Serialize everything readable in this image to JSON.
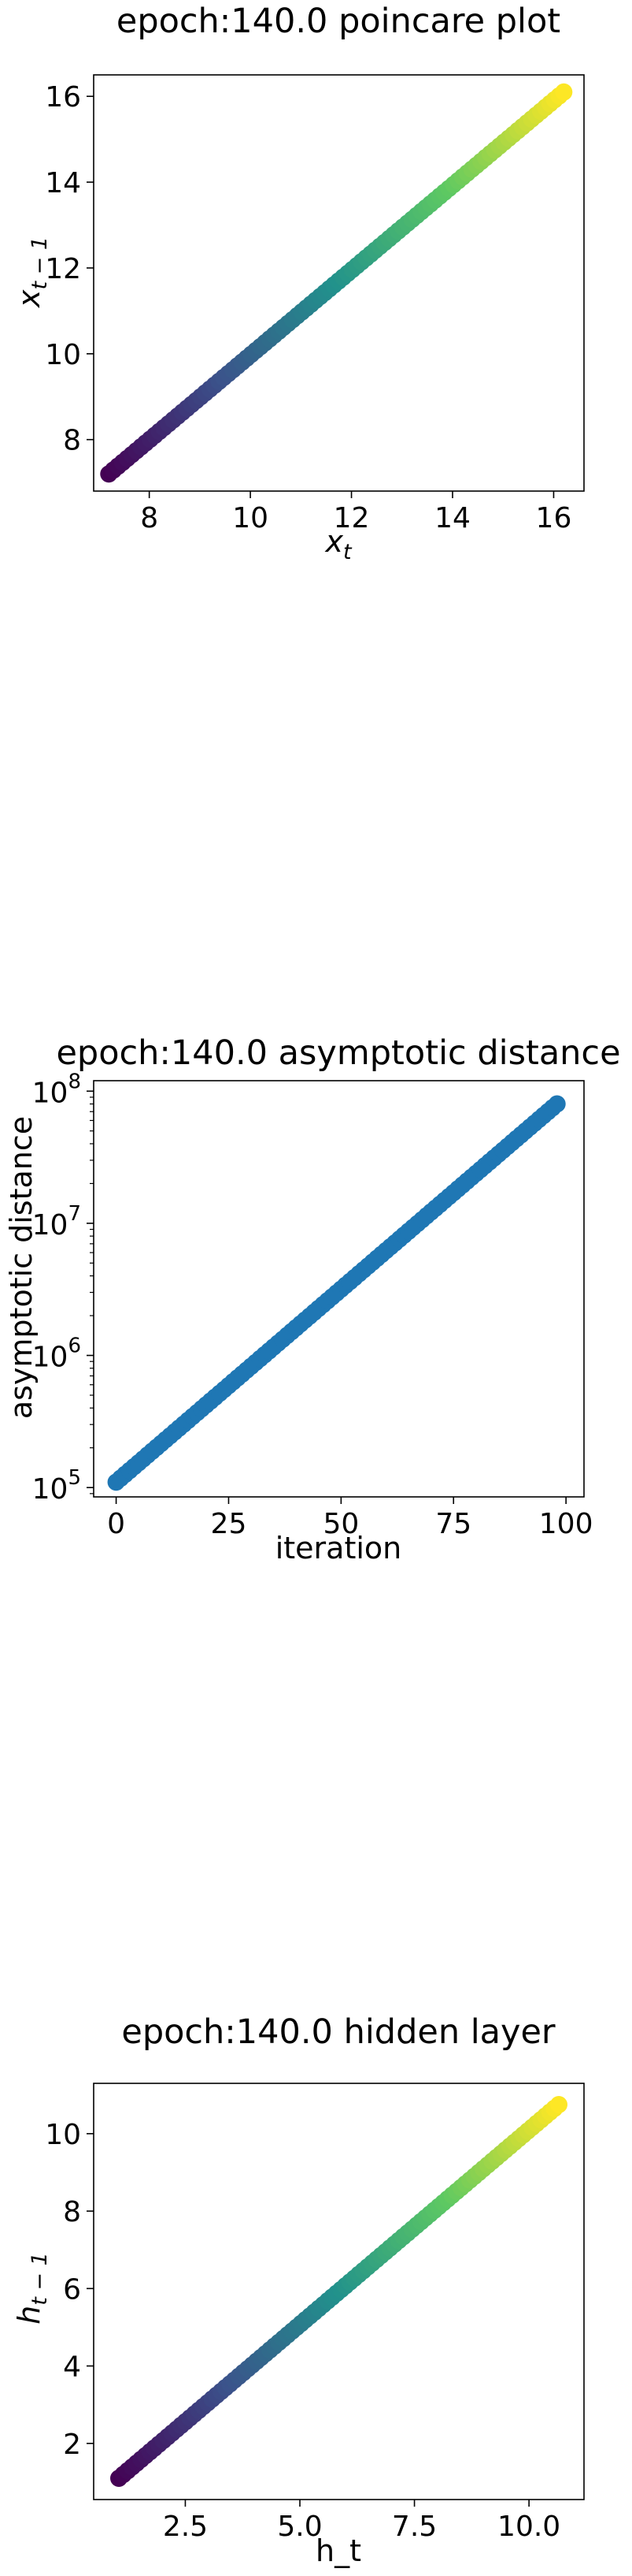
{
  "chart_data": [
    {
      "type": "scatter",
      "title": "epoch:140.0 poincare plot",
      "xlabel_main": "x",
      "xlabel_sub": "t",
      "ylabel_main": "x",
      "ylabel_sub": "t − 1",
      "xlim": [
        6.9,
        16.6
      ],
      "ylim": [
        6.8,
        16.5
      ],
      "xticks": [
        8,
        10,
        12,
        14,
        16
      ],
      "yticks": [
        8,
        10,
        12,
        14,
        16
      ],
      "xticklabels": [
        "8",
        "10",
        "12",
        "14",
        "16"
      ],
      "yticklabels": [
        "8",
        "10",
        "12",
        "14",
        "16"
      ],
      "colormap": "viridis",
      "grid": false,
      "series": [
        {
          "x_start": 7.2,
          "x_end": 16.2,
          "y_start": 7.2,
          "y_end": 16.1,
          "n_points": 100
        }
      ]
    },
    {
      "type": "scatter",
      "title": "epoch:140.0 asymptotic distance",
      "xlabel": "iteration",
      "ylabel": "asymptotic distance",
      "yscale": "log",
      "xlim": [
        -5,
        104
      ],
      "ylim": [
        85000,
        120000000
      ],
      "xticks": [
        0,
        25,
        50,
        75,
        100
      ],
      "xticklabels": [
        "0",
        "25",
        "50",
        "75",
        "100"
      ],
      "yticks": [
        100000,
        1000000,
        10000000,
        100000000
      ],
      "yticklabels": [
        {
          "base": "10",
          "exp": "5"
        },
        {
          "base": "10",
          "exp": "6"
        },
        {
          "base": "10",
          "exp": "7"
        },
        {
          "base": "10",
          "exp": "8"
        }
      ],
      "color": "#1f77b4",
      "grid": false,
      "series": [
        {
          "x_start": 0,
          "x_end": 98,
          "y_start": 110000,
          "y_end": 80000000,
          "n_points": 99
        }
      ]
    },
    {
      "type": "scatter",
      "title": "epoch:140.0 hidden layer",
      "xlabel": "h_t",
      "ylabel_main": "h",
      "ylabel_sub": "t − 1",
      "xlim": [
        0.5,
        11.2
      ],
      "ylim": [
        0.55,
        11.3
      ],
      "xticks": [
        2.5,
        5.0,
        7.5,
        10.0
      ],
      "xticklabels": [
        "2.5",
        "5.0",
        "7.5",
        "10.0"
      ],
      "yticks": [
        2,
        4,
        6,
        8,
        10
      ],
      "yticklabels": [
        "2",
        "4",
        "6",
        "8",
        "10"
      ],
      "colormap": "viridis",
      "grid": false,
      "series": [
        {
          "x_start": 1.05,
          "x_end": 10.65,
          "y_start": 1.1,
          "y_end": 10.75,
          "n_points": 100
        }
      ]
    }
  ]
}
